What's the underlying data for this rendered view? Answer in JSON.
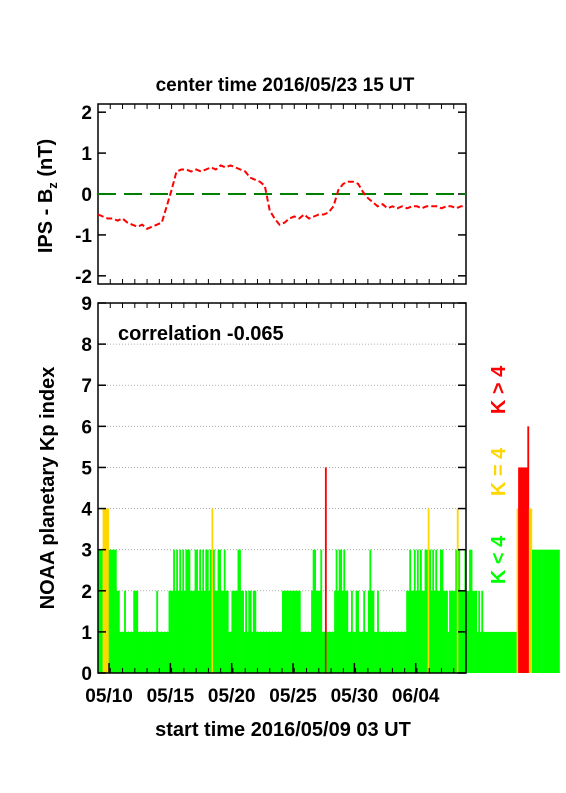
{
  "chart_data": [
    {
      "type": "line",
      "title": "center time 2016/05/23 15 UT",
      "ylabel_main": "IPS - B",
      "ylabel_sub": "z",
      "ylabel_unit": " (nT)",
      "ylim": [
        -2.2,
        2.2
      ],
      "yticks": [
        -2,
        -1,
        0,
        1,
        2
      ],
      "xlim": [
        0,
        30
      ],
      "zero_line_color": "#008000",
      "series_color": "#ff0000",
      "series": [
        {
          "x": [
            0,
            0.4,
            0.8,
            1.2,
            1.6,
            2.0,
            2.4,
            2.8,
            3.2,
            3.6,
            4.0,
            4.4,
            4.8,
            5.2,
            5.6,
            6.0,
            6.4,
            6.8,
            7.2,
            7.6,
            8.0,
            8.4,
            8.8,
            9.2,
            9.6,
            10.0,
            10.4,
            10.8,
            11.2,
            11.6,
            12.0,
            12.4,
            12.8,
            13.2,
            13.6,
            14.0,
            14.4,
            14.8,
            15.2,
            15.6,
            16.0,
            16.4,
            16.8,
            17.2,
            17.6,
            18.0,
            18.4,
            18.8,
            19.2,
            19.6,
            20.0,
            20.4,
            20.8,
            21.2,
            21.6,
            22.0,
            22.4,
            22.8,
            23.2,
            23.6,
            24.0,
            24.4,
            24.8,
            25.2,
            25.6,
            26.0,
            26.4,
            26.8,
            27.2,
            27.6,
            28.0,
            28.4,
            28.8,
            29.2,
            29.6,
            30.0
          ],
          "values": [
            -0.5,
            -0.55,
            -0.6,
            -0.6,
            -0.65,
            -0.6,
            -0.7,
            -0.75,
            -0.8,
            -0.75,
            -0.85,
            -0.8,
            -0.75,
            -0.7,
            -0.3,
            0.1,
            0.55,
            0.6,
            0.6,
            0.55,
            0.6,
            0.55,
            0.6,
            0.65,
            0.6,
            0.7,
            0.65,
            0.7,
            0.65,
            0.6,
            0.55,
            0.4,
            0.35,
            0.3,
            0.2,
            -0.4,
            -0.6,
            -0.75,
            -0.7,
            -0.6,
            -0.55,
            -0.6,
            -0.5,
            -0.6,
            -0.55,
            -0.5,
            -0.5,
            -0.45,
            -0.3,
            0.1,
            0.25,
            0.3,
            0.3,
            0.25,
            0.05,
            -0.1,
            -0.2,
            -0.3,
            -0.25,
            -0.35,
            -0.3,
            -0.35,
            -0.3,
            -0.35,
            -0.3,
            -0.3,
            -0.35,
            -0.3,
            -0.3,
            -0.3,
            -0.35,
            -0.3,
            -0.3,
            -0.35,
            -0.3,
            -0.3
          ]
        }
      ]
    },
    {
      "type": "bar",
      "ylabel": "NOAA planetary Kp index",
      "xlabel": "start time 2016/05/09 03 UT",
      "annotation": "correlation -0.065",
      "ylim": [
        0,
        9
      ],
      "yticks": [
        0,
        1,
        2,
        3,
        4,
        5,
        6,
        7,
        8,
        9
      ],
      "xlim": [
        0,
        30
      ],
      "xtick_labels": [
        "05/10",
        "05/15",
        "05/20",
        "05/25",
        "05/30",
        "06/04"
      ],
      "xtick_positions": [
        0.9,
        5.9,
        10.9,
        15.9,
        20.9,
        25.9
      ],
      "legend": [
        {
          "label": "K > 4",
          "color": "#ff0000"
        },
        {
          "label": "K = 4",
          "color": "#ffd700"
        },
        {
          "label": "K < 4",
          "color": "#00ff00"
        }
      ],
      "bar_width_days": 0.125,
      "values": [
        3,
        3,
        3,
        4,
        4,
        4,
        4,
        3,
        3,
        3,
        3,
        3,
        2,
        2,
        1,
        1,
        1,
        2,
        1,
        1,
        1,
        1,
        1,
        2,
        2,
        2,
        1,
        1,
        1,
        1,
        1,
        1,
        1,
        1,
        1,
        1,
        1,
        1,
        2,
        1,
        1,
        1,
        1,
        1,
        1,
        1,
        2,
        2,
        2,
        3,
        2,
        3,
        2,
        3,
        2,
        3,
        2,
        3,
        3,
        3,
        2,
        2,
        2,
        3,
        3,
        2,
        3,
        2,
        3,
        2,
        3,
        3,
        2,
        3,
        4,
        3,
        2,
        2,
        3,
        3,
        2,
        2,
        3,
        2,
        2,
        1,
        1,
        2,
        2,
        2,
        2,
        3,
        3,
        2,
        2,
        1,
        2,
        1,
        2,
        2,
        1,
        2,
        2,
        1,
        1,
        1,
        1,
        1,
        1,
        1,
        1,
        1,
        1,
        1,
        1,
        1,
        1,
        1,
        1,
        1,
        2,
        2,
        2,
        2,
        2,
        2,
        2,
        2,
        2,
        2,
        2,
        2,
        1,
        1,
        1,
        1,
        1,
        1,
        1,
        2,
        3,
        3,
        2,
        2,
        2,
        3,
        1,
        1,
        5,
        1,
        1,
        1,
        1,
        1,
        2,
        3,
        2,
        3,
        3,
        2,
        3,
        2,
        2,
        1,
        1,
        2,
        1,
        1,
        2,
        2,
        1,
        1,
        1,
        2,
        1,
        1,
        2,
        3,
        2,
        2,
        1,
        1,
        2,
        1,
        1,
        1,
        1,
        1,
        1,
        1,
        1,
        1,
        1,
        1,
        1,
        1,
        1,
        1,
        1,
        1,
        1,
        2,
        2,
        3,
        2,
        2,
        3,
        2,
        3,
        2,
        3,
        2,
        2,
        3,
        3,
        4,
        3,
        2,
        3,
        2,
        3,
        2,
        2,
        3,
        3,
        2,
        2,
        2,
        1,
        2,
        2,
        2,
        2,
        3,
        4,
        3,
        2,
        2,
        2,
        3,
        2,
        2,
        3,
        3,
        2,
        2,
        2,
        1,
        2,
        1,
        2,
        1,
        1,
        1,
        1,
        1,
        1,
        1,
        1,
        1,
        1,
        1,
        1,
        1,
        1,
        1,
        1,
        1,
        1,
        1,
        1,
        1,
        1,
        4,
        5,
        5,
        5,
        5,
        5,
        5,
        6,
        4,
        4,
        3,
        3,
        3,
        3,
        3,
        3,
        3,
        3,
        3,
        3,
        3,
        3,
        3,
        3,
        3,
        3,
        3,
        3
      ]
    }
  ]
}
